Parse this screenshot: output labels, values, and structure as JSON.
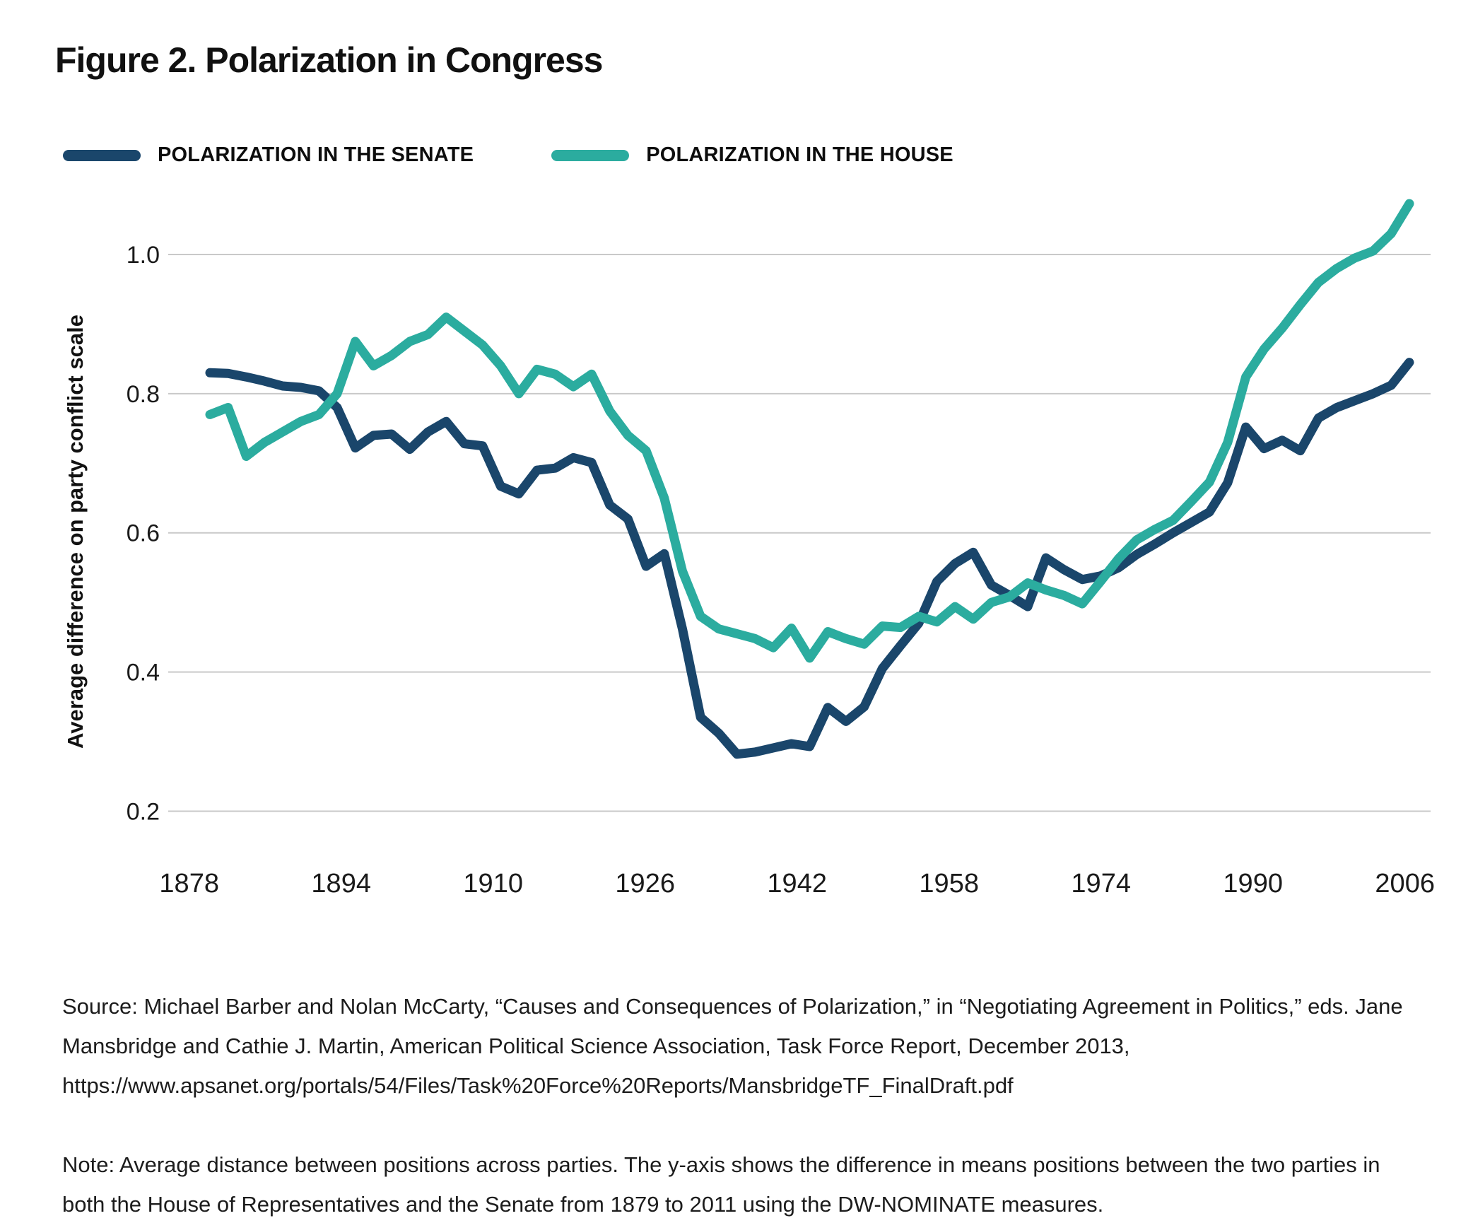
{
  "title": "Figure 2. Polarization in Congress",
  "legend": [
    {
      "key": "senate",
      "label": "POLARIZATION IN THE SENATE",
      "color": "#1A466B"
    },
    {
      "key": "house",
      "label": "POLARIZATION IN THE HOUSE",
      "color": "#2BAC9F"
    }
  ],
  "y_axis": {
    "label": "Average difference on party conflict scale",
    "ticks": [
      "1.0",
      "0.8",
      "0.6",
      "0.4",
      "0.2"
    ]
  },
  "x_axis": {
    "ticks": [
      "1878",
      "1894",
      "1910",
      "1926",
      "1942",
      "1958",
      "1974",
      "1990",
      "2006"
    ]
  },
  "source": "Source: Michael Barber and Nolan McCarty, “Causes and Consequences of Polarization,” in “Negotiating Agreement in Politics,” eds. Jane Mansbridge and Cathie J. Martin, American Political Science Association, Task Force Report, December 2013, https://www.apsanet.org/portals/54/Files/Task%20Force%20Reports/MansbridgeTF_FinalDraft.pdf",
  "note": "Note: Average distance between positions across parties. The y-axis shows the difference in means positions between the two parties in both the House of Representatives and the Senate from 1879 to 2011 using the DW-NOMINATE measures.",
  "chart_data": {
    "type": "line",
    "title": "Figure 2. Polarization in Congress",
    "xlabel": "",
    "ylabel": "Average difference on party conflict scale",
    "x_tick_years": [
      1878,
      1894,
      1910,
      1926,
      1942,
      1958,
      1974,
      1990,
      2006
    ],
    "y_gridlines": [
      0.2,
      0.4,
      0.6,
      0.8,
      1.0
    ],
    "grid": "horizontal",
    "legend_position": "top",
    "x": [
      1879,
      1881,
      1883,
      1885,
      1887,
      1889,
      1891,
      1893,
      1895,
      1897,
      1899,
      1901,
      1903,
      1905,
      1907,
      1909,
      1911,
      1913,
      1915,
      1917,
      1919,
      1921,
      1923,
      1925,
      1927,
      1929,
      1931,
      1933,
      1935,
      1937,
      1939,
      1941,
      1943,
      1945,
      1947,
      1949,
      1951,
      1953,
      1955,
      1957,
      1959,
      1961,
      1963,
      1965,
      1967,
      1969,
      1971,
      1973,
      1975,
      1977,
      1979,
      1981,
      1983,
      1985,
      1987,
      1989,
      1991,
      1993,
      1995,
      1997,
      1999,
      2001,
      2003,
      2005,
      2007,
      2009,
      2011
    ],
    "series": [
      {
        "key": "senate",
        "name": "Polarization in the Senate",
        "color": "#1A466B",
        "values": [
          0.83,
          0.829,
          0.824,
          0.818,
          0.811,
          0.809,
          0.804,
          0.78,
          0.722,
          0.74,
          0.742,
          0.72,
          0.745,
          0.76,
          0.728,
          0.725,
          0.667,
          0.656,
          0.69,
          0.693,
          0.708,
          0.701,
          0.64,
          0.62,
          0.552,
          0.57,
          0.462,
          0.335,
          0.312,
          0.282,
          0.285,
          0.291,
          0.297,
          0.293,
          0.349,
          0.329,
          0.35,
          0.405,
          0.438,
          0.47,
          0.53,
          0.556,
          0.572,
          0.525,
          0.51,
          0.494,
          0.564,
          0.547,
          0.533,
          0.538,
          0.55,
          0.569,
          0.584,
          0.6,
          0.615,
          0.63,
          0.672,
          0.752,
          0.721,
          0.733,
          0.718,
          0.765,
          0.78,
          0.79,
          0.8,
          0.812,
          0.845
        ]
      },
      {
        "key": "house",
        "name": "Polarization in the House",
        "color": "#2BAC9F",
        "values": [
          0.77,
          0.78,
          0.71,
          0.73,
          0.745,
          0.76,
          0.77,
          0.8,
          0.875,
          0.84,
          0.855,
          0.875,
          0.885,
          0.91,
          0.89,
          0.87,
          0.84,
          0.8,
          0.835,
          0.828,
          0.81,
          0.828,
          0.775,
          0.74,
          0.718,
          0.65,
          0.545,
          0.48,
          0.462,
          0.455,
          0.448,
          0.435,
          0.463,
          0.42,
          0.458,
          0.448,
          0.44,
          0.466,
          0.464,
          0.48,
          0.472,
          0.494,
          0.476,
          0.5,
          0.508,
          0.528,
          0.518,
          0.51,
          0.498,
          0.53,
          0.563,
          0.59,
          0.605,
          0.618,
          0.645,
          0.673,
          0.73,
          0.824,
          0.864,
          0.894,
          0.928,
          0.96,
          0.98,
          0.995,
          1.005,
          1.03,
          1.073
        ]
      }
    ]
  }
}
